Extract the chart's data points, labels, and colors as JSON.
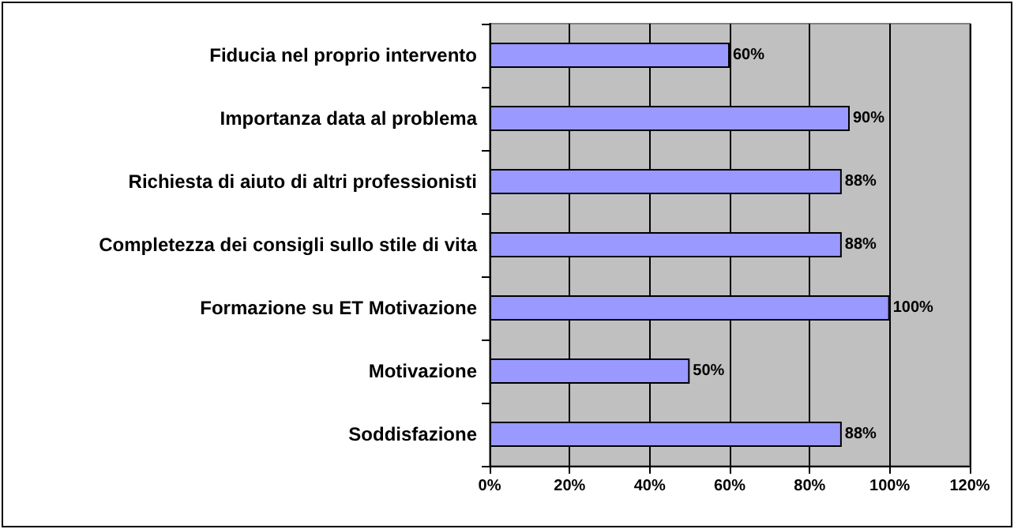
{
  "chart_data": {
    "type": "bar",
    "orientation": "horizontal",
    "categories": [
      "Fiducia nel proprio intervento",
      "Importanza data al problema",
      "Richiesta di aiuto di altri professionisti",
      "Completezza dei consigli sullo stile di vita",
      "Formazione su ET Motivazione",
      "Motivazione",
      "Soddisfazione"
    ],
    "values": [
      60,
      90,
      88,
      88,
      100,
      50,
      88
    ],
    "value_labels": [
      "60%",
      "90%",
      "88%",
      "88%",
      "100%",
      "50%",
      "88%"
    ],
    "color": "#9999ff",
    "xlim": [
      0,
      120
    ],
    "xticks": [
      {
        "value": 0,
        "label": "0%"
      },
      {
        "value": 20,
        "label": "20%"
      },
      {
        "value": 40,
        "label": "40%"
      },
      {
        "value": 60,
        "label": "60%"
      },
      {
        "value": 80,
        "label": "80%"
      },
      {
        "value": 100,
        "label": "100%"
      },
      {
        "value": 120,
        "label": "120%"
      }
    ],
    "grid": "x"
  }
}
